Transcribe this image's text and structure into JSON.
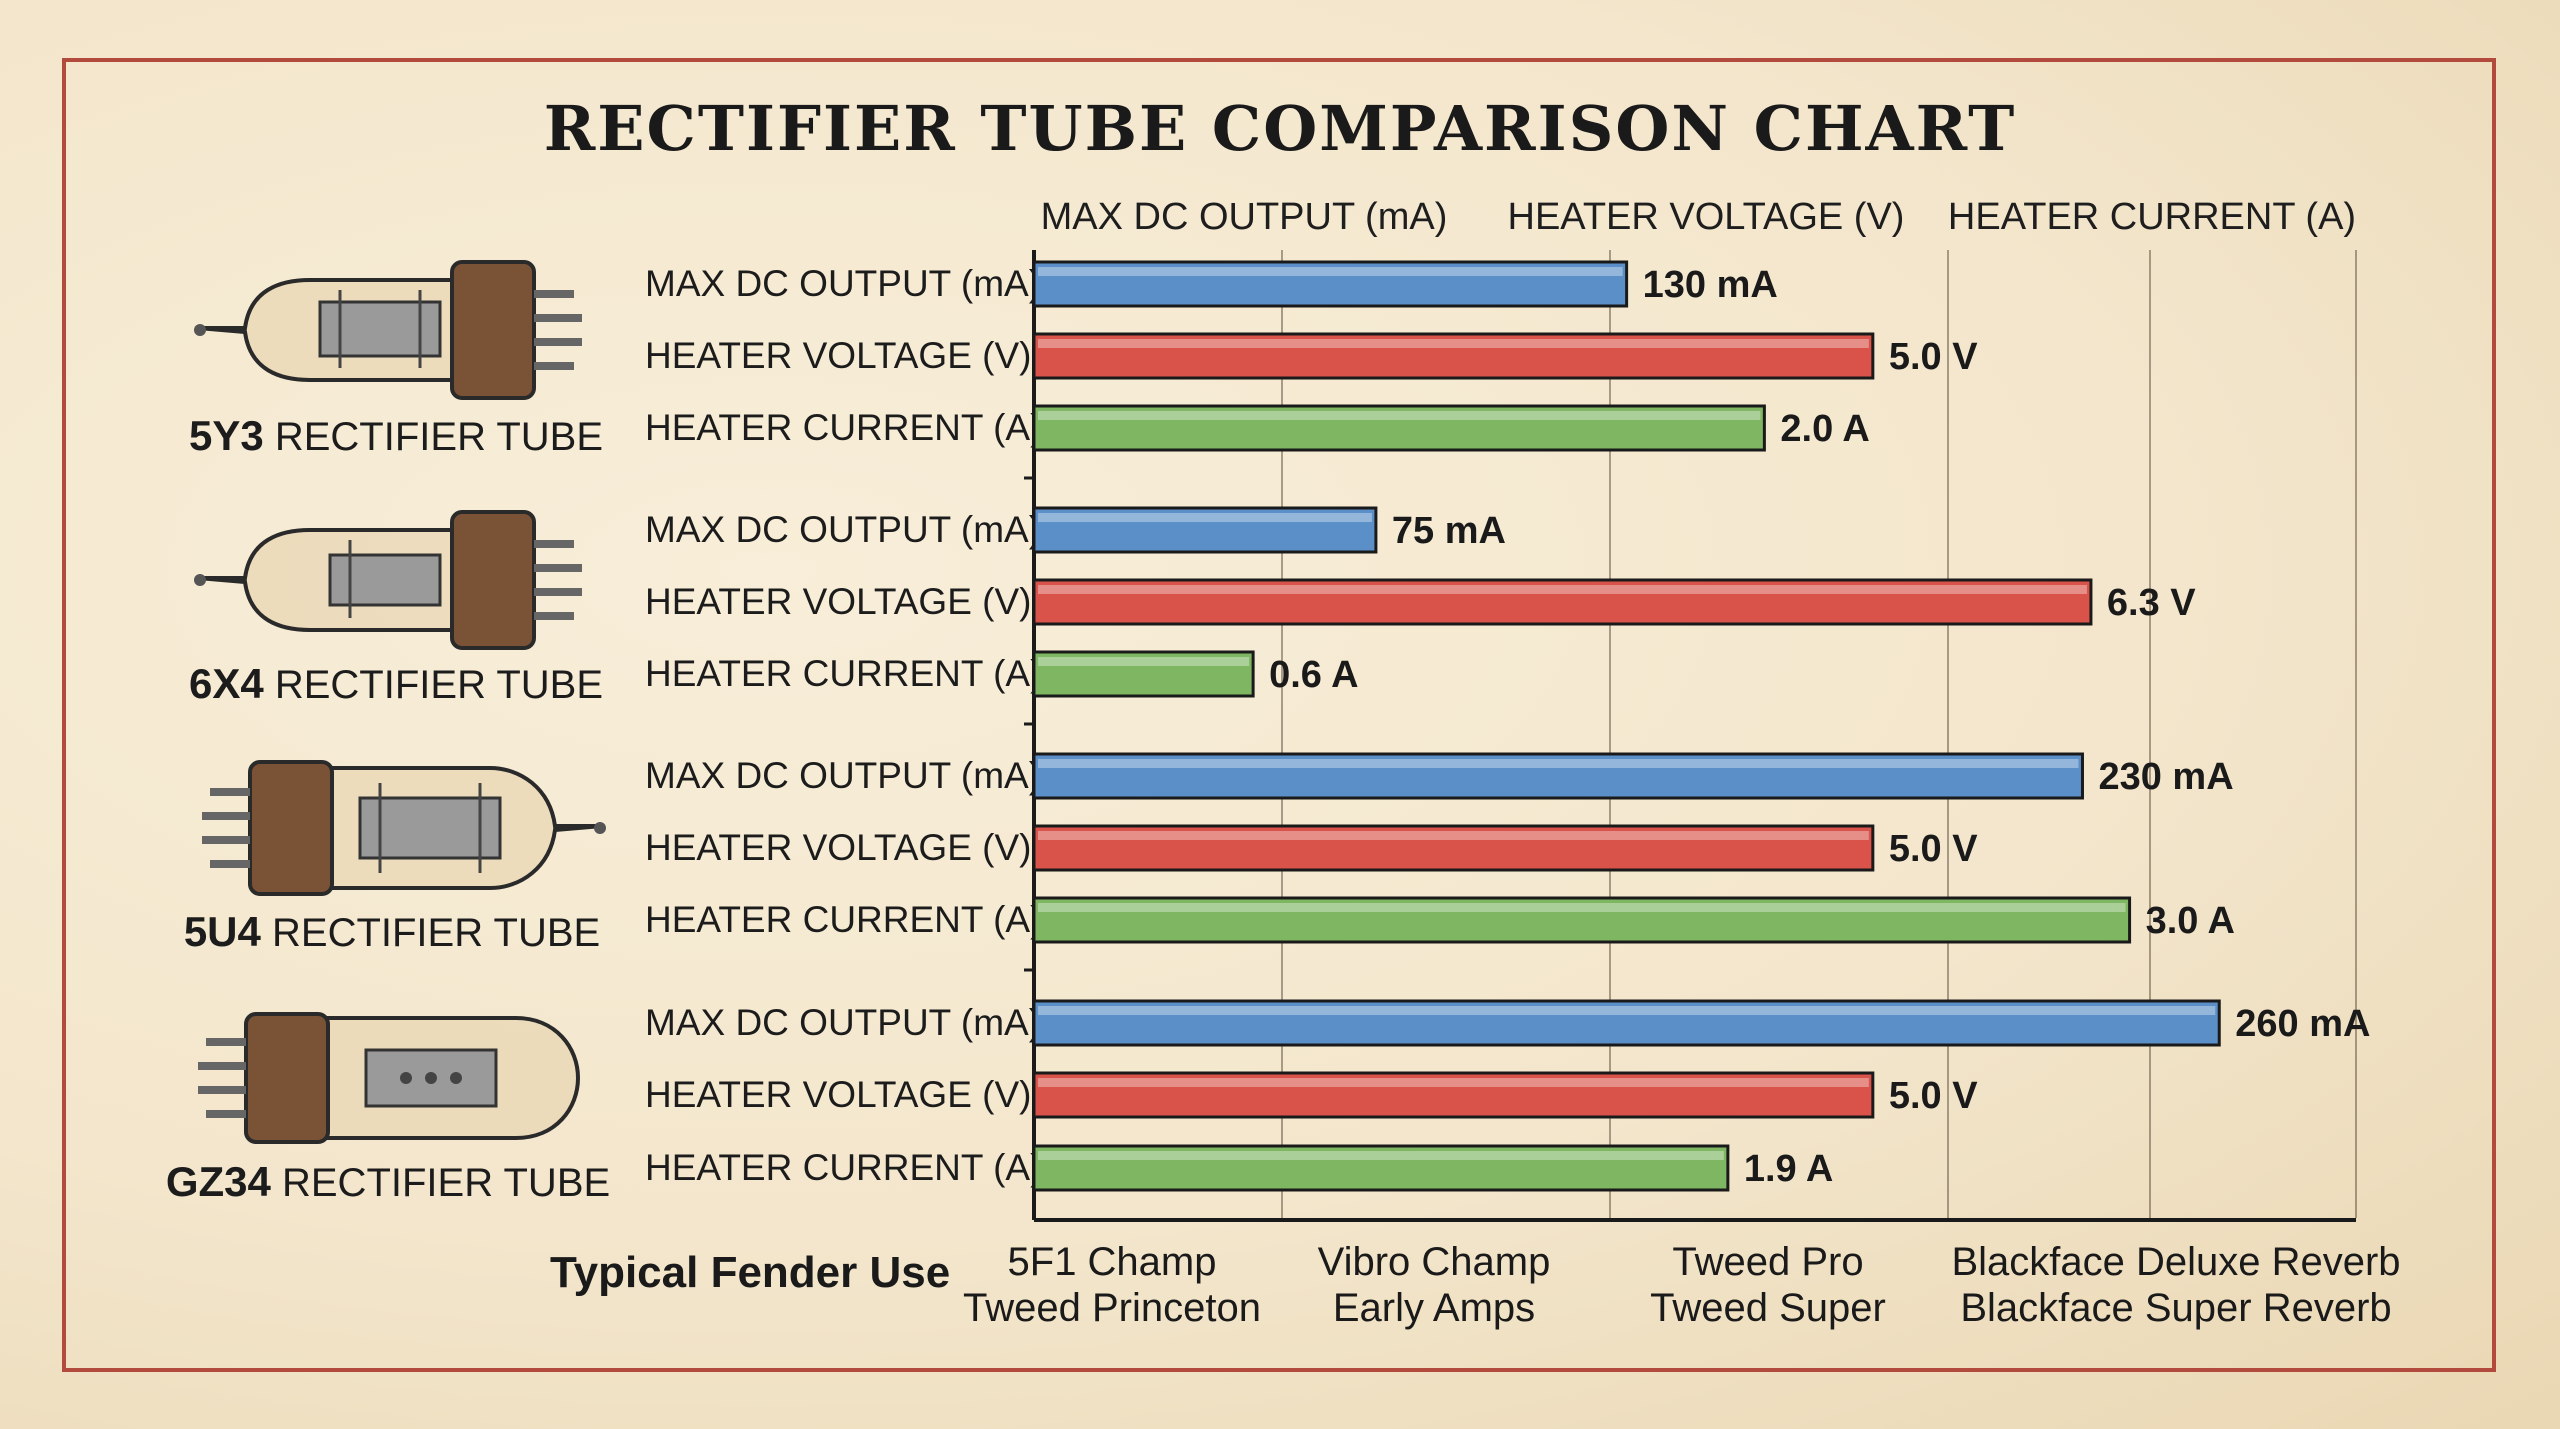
{
  "chart_data": {
    "type": "bar",
    "orientation": "horizontal",
    "title": "RECTIFIER TUBE COMPARISON CHART",
    "column_headers": [
      "MAX DC OUTPUT (mA)",
      "HEATER VOLTAGE (V)",
      "HEATER CURRENT (A)"
    ],
    "metric_labels": [
      "MAX DC OUTPUT (mA)",
      "HEATER VOLTAGE (V)",
      "HEATER CURRENT (A)"
    ],
    "metric_colors": [
      "#5b8fc8",
      "#d9534a",
      "#7fb661"
    ],
    "groups": [
      {
        "name": "5Y3",
        "suffix": "RECTIFIER TUBE",
        "values": [
          130,
          5.0,
          2.0
        ],
        "value_labels": [
          "130 mA",
          "5.0 V",
          "2.0 A"
        ]
      },
      {
        "name": "6X4",
        "suffix": "RECTIFIER TUBE",
        "values": [
          75,
          6.3,
          0.6
        ],
        "value_labels": [
          "75 mA",
          "6.3 V",
          "0.6 A"
        ]
      },
      {
        "name": "5U4",
        "suffix": "RECTIFIER TUBE",
        "values": [
          230,
          5.0,
          3.0
        ],
        "value_labels": [
          "230 mA",
          "5.0 V",
          "3.0 A"
        ]
      },
      {
        "name": "GZ34",
        "suffix": "RECTIFIER TUBE",
        "values": [
          260,
          5.0,
          1.9
        ],
        "value_labels": [
          "260 mA",
          "5.0 V",
          "1.9 A"
        ]
      }
    ],
    "xlim_by_metric": {
      "ma": [
        0,
        290
      ],
      "v": [
        0,
        7.88
      ],
      "a": [
        0,
        3.62
      ]
    },
    "grid": true,
    "use_title": "Typical Fender Use",
    "uses": [
      [
        "5F1 Champ",
        "Tweed Princeton"
      ],
      [
        "Vibro Champ",
        "Early Amps"
      ],
      [
        "Tweed Pro",
        "Tweed Super"
      ],
      [
        "Blackface Deluxe Reverb",
        "Blackface Super Reverb"
      ]
    ]
  }
}
